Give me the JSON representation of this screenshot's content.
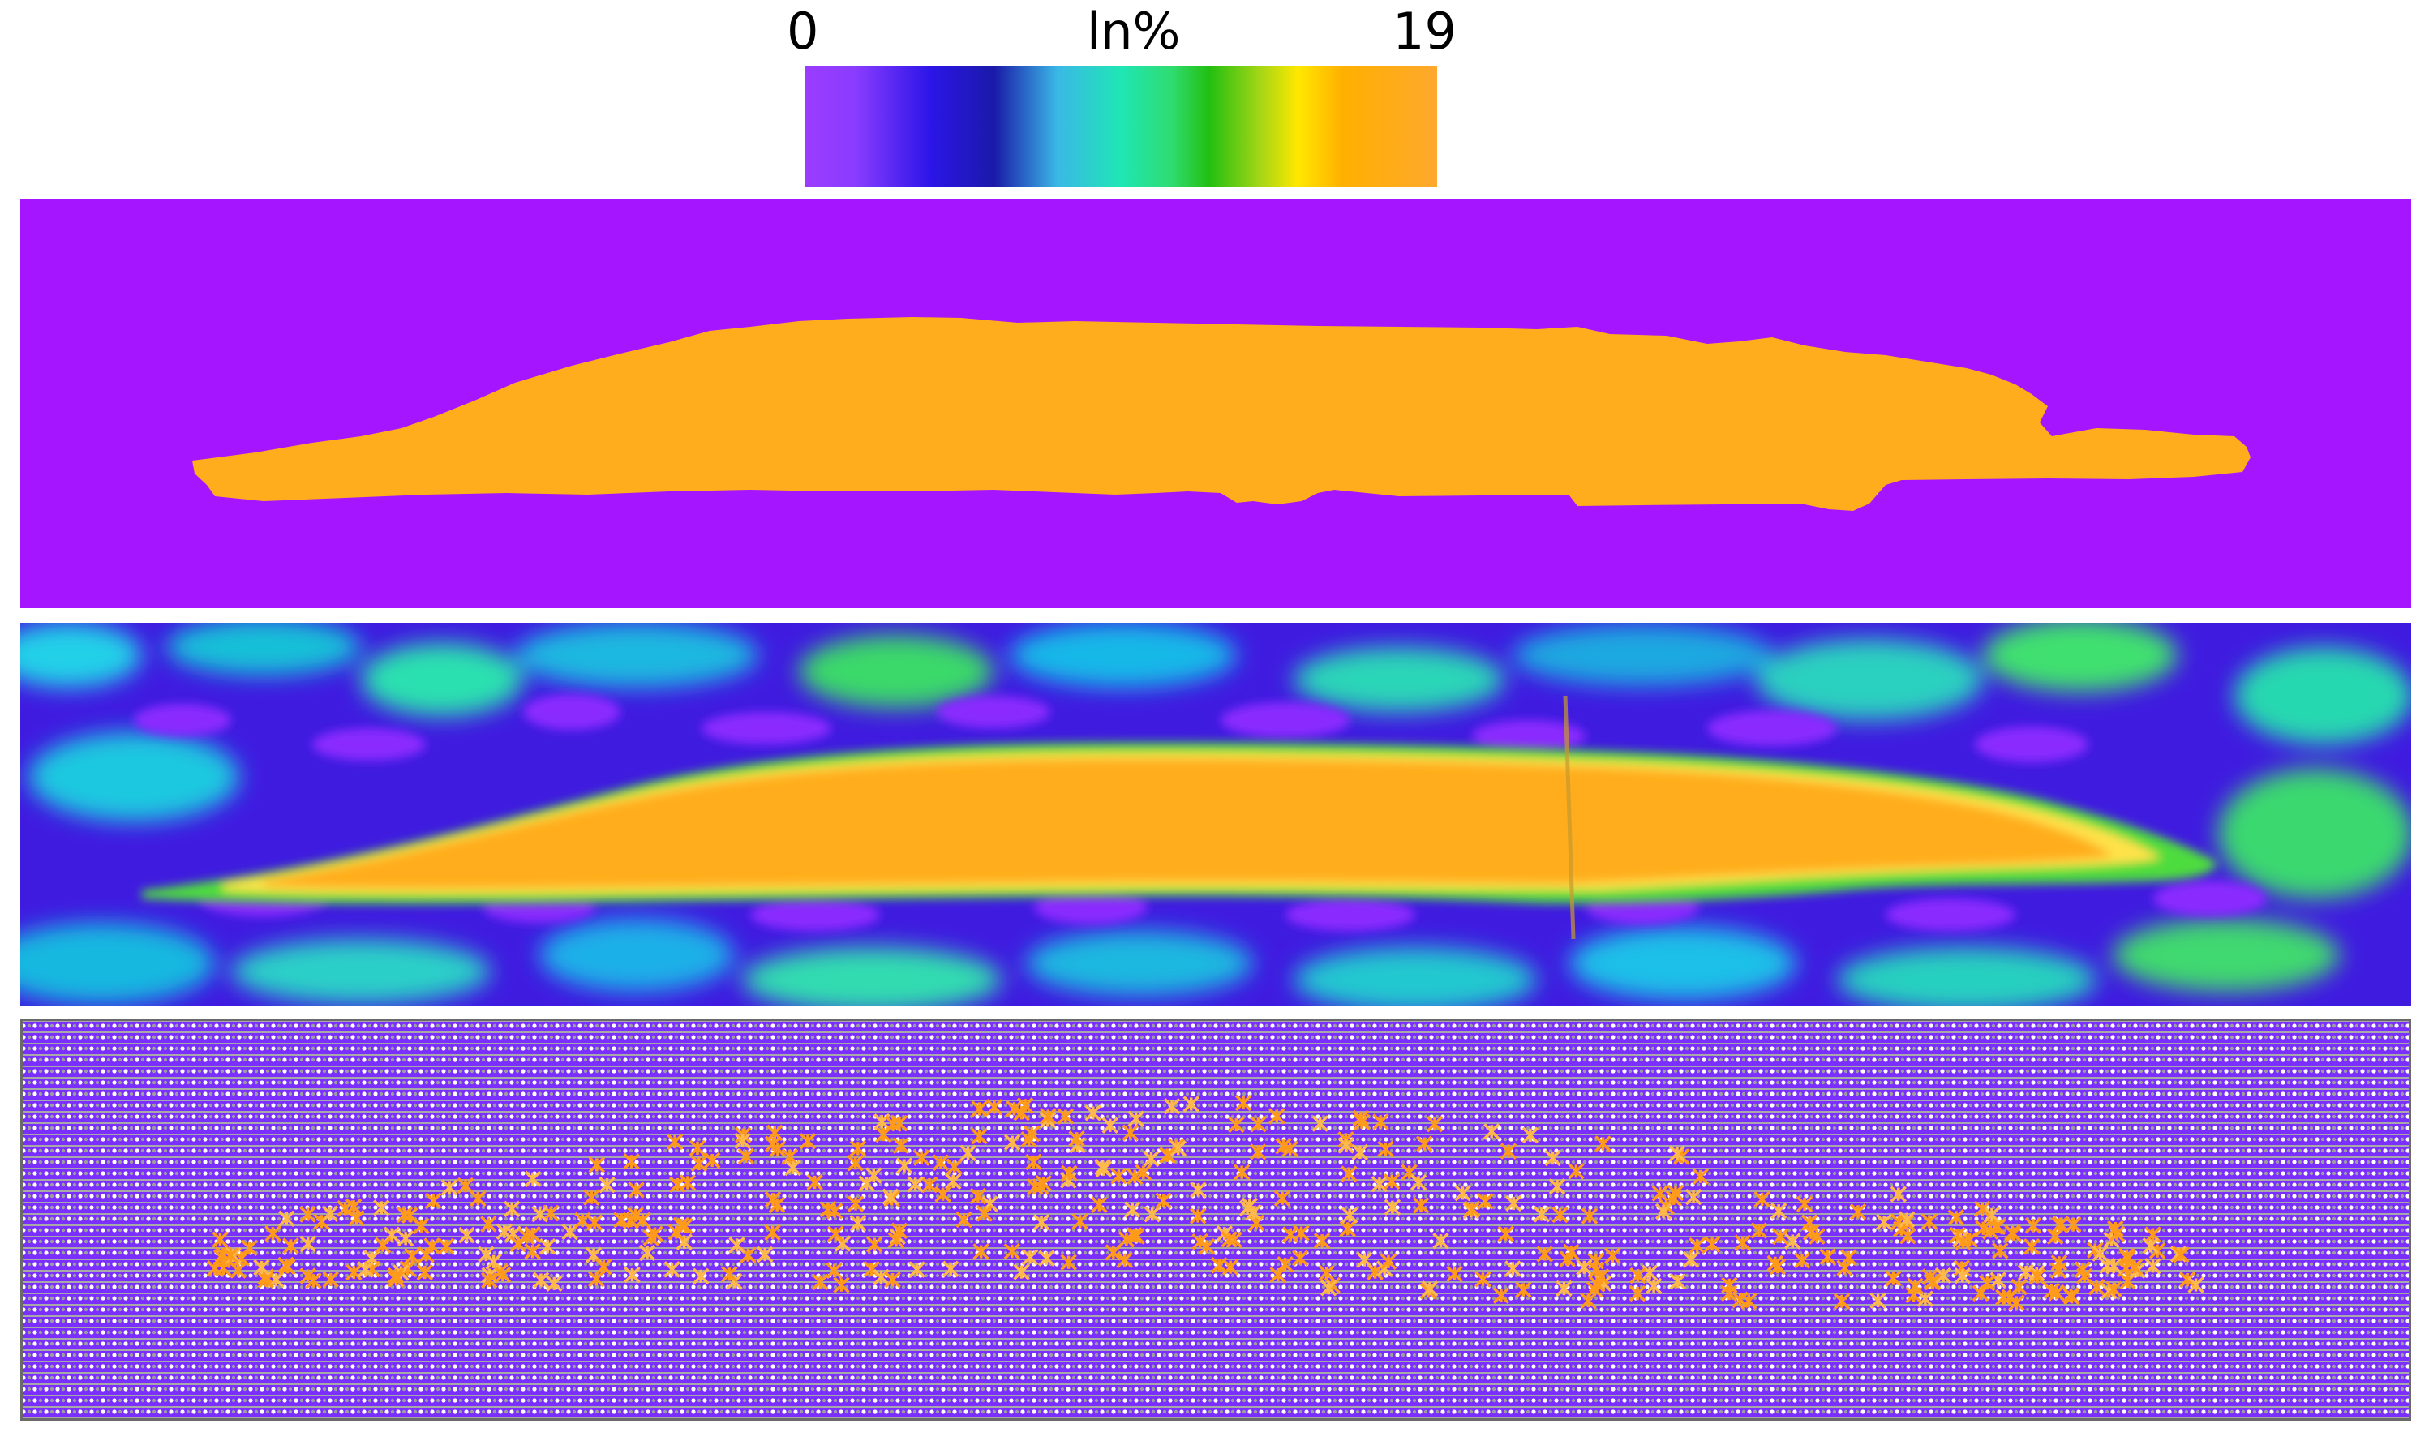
{
  "colorbar": {
    "min_label": "0",
    "title": "ln%",
    "max_label": "19",
    "gradient_stops": [
      "#9b3cff",
      "#2b15e8",
      "#1a1aa8",
      "#3ab8e6",
      "#1fe6b5",
      "#22bf10",
      "#ffe800",
      "#ffb000",
      "#ffa82e"
    ]
  },
  "colors": {
    "background_violet": "#a515ff",
    "band_orange": "#ffad1c",
    "mid_blue": "#2a1ae0",
    "cyan": "#20d8e8",
    "green": "#4ddc3c",
    "lattice_violet": "#7a2fff",
    "lattice_gray": "#9a9a9a",
    "star_orange": "#ff9a1a"
  },
  "panels": [
    {
      "name": "binary-indium-map"
    },
    {
      "name": "smoothed-indium-concentration-map"
    },
    {
      "name": "atomic-lattice-map"
    }
  ]
}
